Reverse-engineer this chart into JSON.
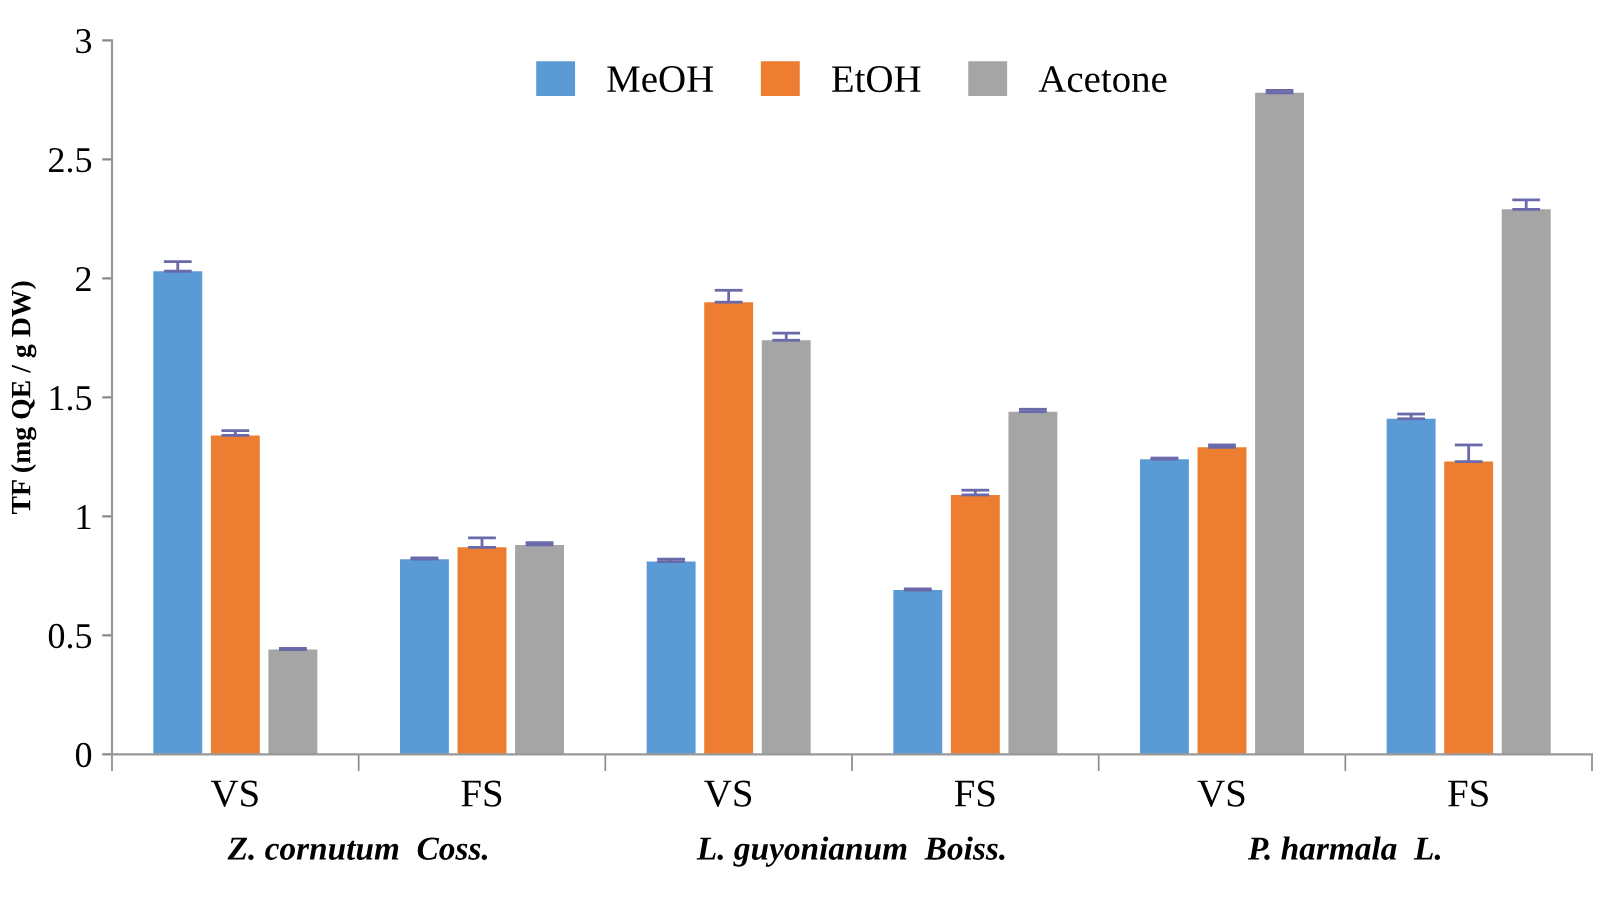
{
  "chart_data": {
    "type": "bar",
    "ylabel": "TF (mg QE / g DW)",
    "categories": [
      "VS",
      "FS",
      "VS",
      "FS",
      "VS",
      "FS"
    ],
    "series": [
      {
        "name": "MeOH",
        "color": "#5b9bd5",
        "values": [
          2.03,
          0.82,
          0.81,
          0.69,
          1.24,
          1.41
        ],
        "errors": [
          0.04,
          0.005,
          0.01,
          0.005,
          0.005,
          0.02
        ]
      },
      {
        "name": "EtOH",
        "color": "#ed7d31",
        "values": [
          1.34,
          0.87,
          1.9,
          1.09,
          1.29,
          1.23
        ],
        "errors": [
          0.02,
          0.04,
          0.05,
          0.02,
          0.01,
          0.07
        ]
      },
      {
        "name": "Acetone",
        "color": "#a5a5a5",
        "values": [
          0.44,
          0.88,
          1.74,
          1.44,
          2.78,
          2.29
        ],
        "errors": [
          0.005,
          0.01,
          0.03,
          0.01,
          0.01,
          0.04
        ]
      }
    ],
    "annotations": [
      "Z. cornutum  Coss.",
      "L. guyonianum  Boiss.",
      "P. harmala  L."
    ],
    "ylim": [
      0,
      3
    ],
    "yticks": [
      0,
      0.5,
      1,
      1.5,
      2,
      2.5,
      3
    ],
    "grid": false,
    "legend": "top"
  }
}
